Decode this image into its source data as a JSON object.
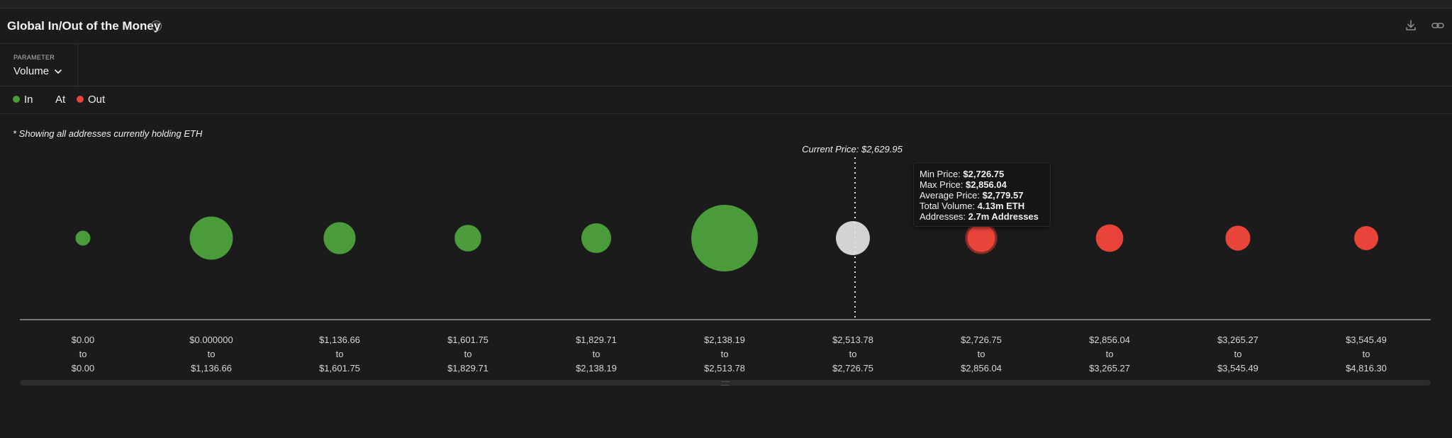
{
  "header": {
    "title": "Global In/Out of the Money",
    "help_icon": "question-circle-icon",
    "download_icon": "download-icon",
    "link_icon": "link-icon"
  },
  "parameter": {
    "caption": "PARAMETER",
    "selected": "Volume",
    "chevron_icon": "chevron-down-icon"
  },
  "legend": [
    {
      "label": "In",
      "color": "#4a9c3a"
    },
    {
      "label": "At",
      "color": ""
    },
    {
      "label": "Out",
      "color": "#e8443a"
    }
  ],
  "note": "* Showing all addresses currently holding ETH",
  "tooltip": {
    "min_label": "Min Price: ",
    "min_value": "$2,726.75",
    "max_label": "Max Price: ",
    "max_value": "$2,856.04",
    "avg_label": "Average Price: ",
    "avg_value": "$2,779.57",
    "vol_label": "Total Volume: ",
    "vol_value": "4.13m ETH",
    "addr_label": "Addresses: ",
    "addr_value": "2.7m Addresses"
  },
  "chart_data": {
    "type": "scatter",
    "current_price_label": "Current Price: $2,629.95",
    "current_price_category_index": 6,
    "colors": {
      "in": "#4a9c3a",
      "at": "#d2d2d2",
      "out": "#e8443a"
    },
    "categories": [
      {
        "from": "$0.00",
        "to_word": "to",
        "to": "$0.00",
        "status": "in",
        "relative_volume": 0.05
      },
      {
        "from": "$0.000000",
        "to_word": "to",
        "to": "$1,136.66",
        "status": "in",
        "relative_volume": 0.42
      },
      {
        "from": "$1,136.66",
        "to_word": "to",
        "to": "$1,601.75",
        "status": "in",
        "relative_volume": 0.23
      },
      {
        "from": "$1,601.75",
        "to_word": "to",
        "to": "$1,829.71",
        "status": "in",
        "relative_volume": 0.16
      },
      {
        "from": "$1,829.71",
        "to_word": "to",
        "to": "$2,138.19",
        "status": "in",
        "relative_volume": 0.2
      },
      {
        "from": "$2,138.19",
        "to_word": "to",
        "to": "$2,513.78",
        "status": "in",
        "relative_volume": 1.0
      },
      {
        "from": "$2,513.78",
        "to_word": "to",
        "to": "$2,726.75",
        "status": "at",
        "relative_volume": 0.26
      },
      {
        "from": "$2,726.75",
        "to_word": "to",
        "to": "$2,856.04",
        "status": "out",
        "relative_volume": 0.2,
        "highlighted": true
      },
      {
        "from": "$2,856.04",
        "to_word": "to",
        "to": "$3,265.27",
        "status": "out",
        "relative_volume": 0.17
      },
      {
        "from": "$3,265.27",
        "to_word": "to",
        "to": "$3,545.49",
        "status": "out",
        "relative_volume": 0.14
      },
      {
        "from": "$3,545.49",
        "to_word": "to",
        "to": "$4,816.30",
        "status": "out",
        "relative_volume": 0.13
      }
    ]
  }
}
